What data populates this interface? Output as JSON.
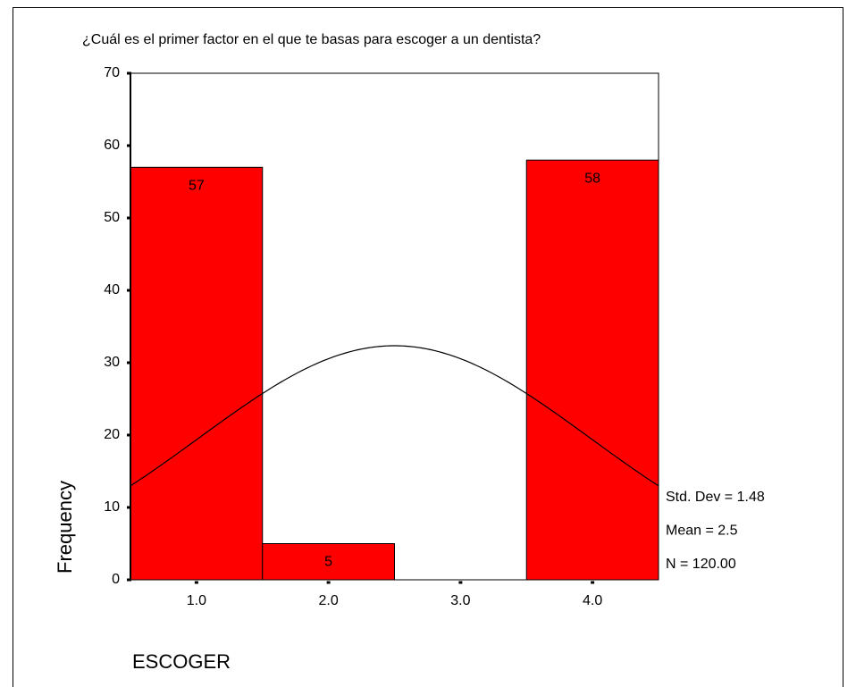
{
  "chart_data": {
    "type": "histogram",
    "title": "¿Cuál es el primer factor en el que te basas para escoger a un dentista?",
    "x_label": "ESCOGER",
    "y_label": "Frequency",
    "bins": [
      0.5,
      1.5,
      2.5,
      3.5,
      4.5
    ],
    "values": [
      57,
      5,
      0,
      58
    ],
    "value_labels": [
      "57",
      "5",
      null,
      "58"
    ],
    "color": "#ff0000",
    "xlim": [
      0.5,
      4.5
    ],
    "xticks": [
      {
        "value": 1,
        "label": "1.0"
      },
      {
        "value": 2,
        "label": "2.0"
      },
      {
        "value": 3,
        "label": "3.0"
      },
      {
        "value": 4,
        "label": "4.0"
      }
    ],
    "ylim": [
      0,
      70
    ],
    "yticks": [
      0,
      10,
      20,
      30,
      40,
      50,
      60,
      70
    ],
    "normal_curve": true,
    "stats": {
      "std_dev": 1.48,
      "mean": 2.5,
      "n": 120,
      "labels": [
        "Std. Dev = 1.48",
        "Mean = 2.5",
        "N = 120.00"
      ]
    }
  }
}
